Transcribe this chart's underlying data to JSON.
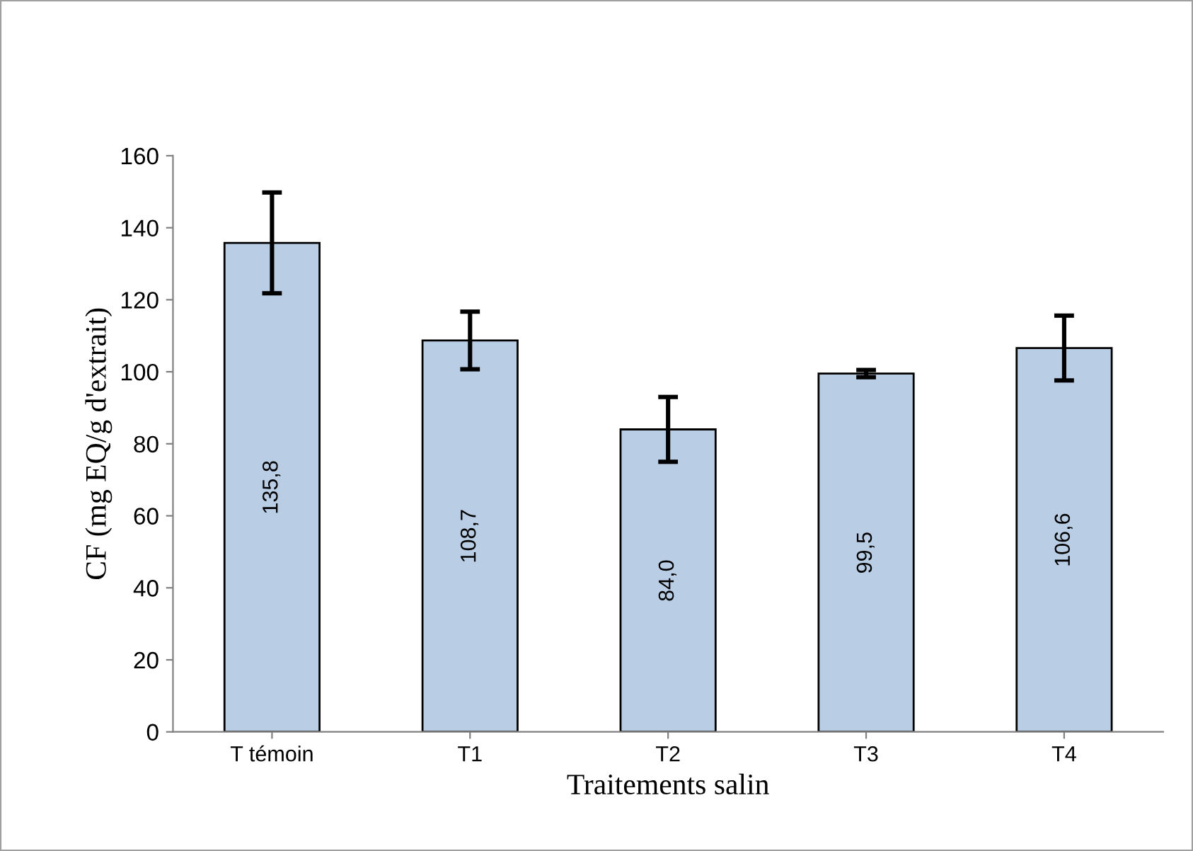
{
  "chart_data": {
    "type": "bar",
    "xlabel": "Traitements salin",
    "ylabel": "CF (mg EQ/g d'extrait)",
    "categories": [
      "T témoin",
      "T1",
      "T2",
      "T3",
      "T4"
    ],
    "values": [
      135.8,
      108.7,
      84.0,
      99.5,
      106.6
    ],
    "errors": [
      14,
      8,
      9,
      1,
      9
    ],
    "value_labels": [
      "135,8",
      "108,7",
      "84,0",
      "99,5",
      "106,6"
    ],
    "color": "#b9cde5",
    "ylim": [
      0,
      160
    ],
    "yticks": [
      0,
      20,
      40,
      60,
      80,
      100,
      120,
      140,
      160
    ],
    "grid": false,
    "legend": false
  }
}
